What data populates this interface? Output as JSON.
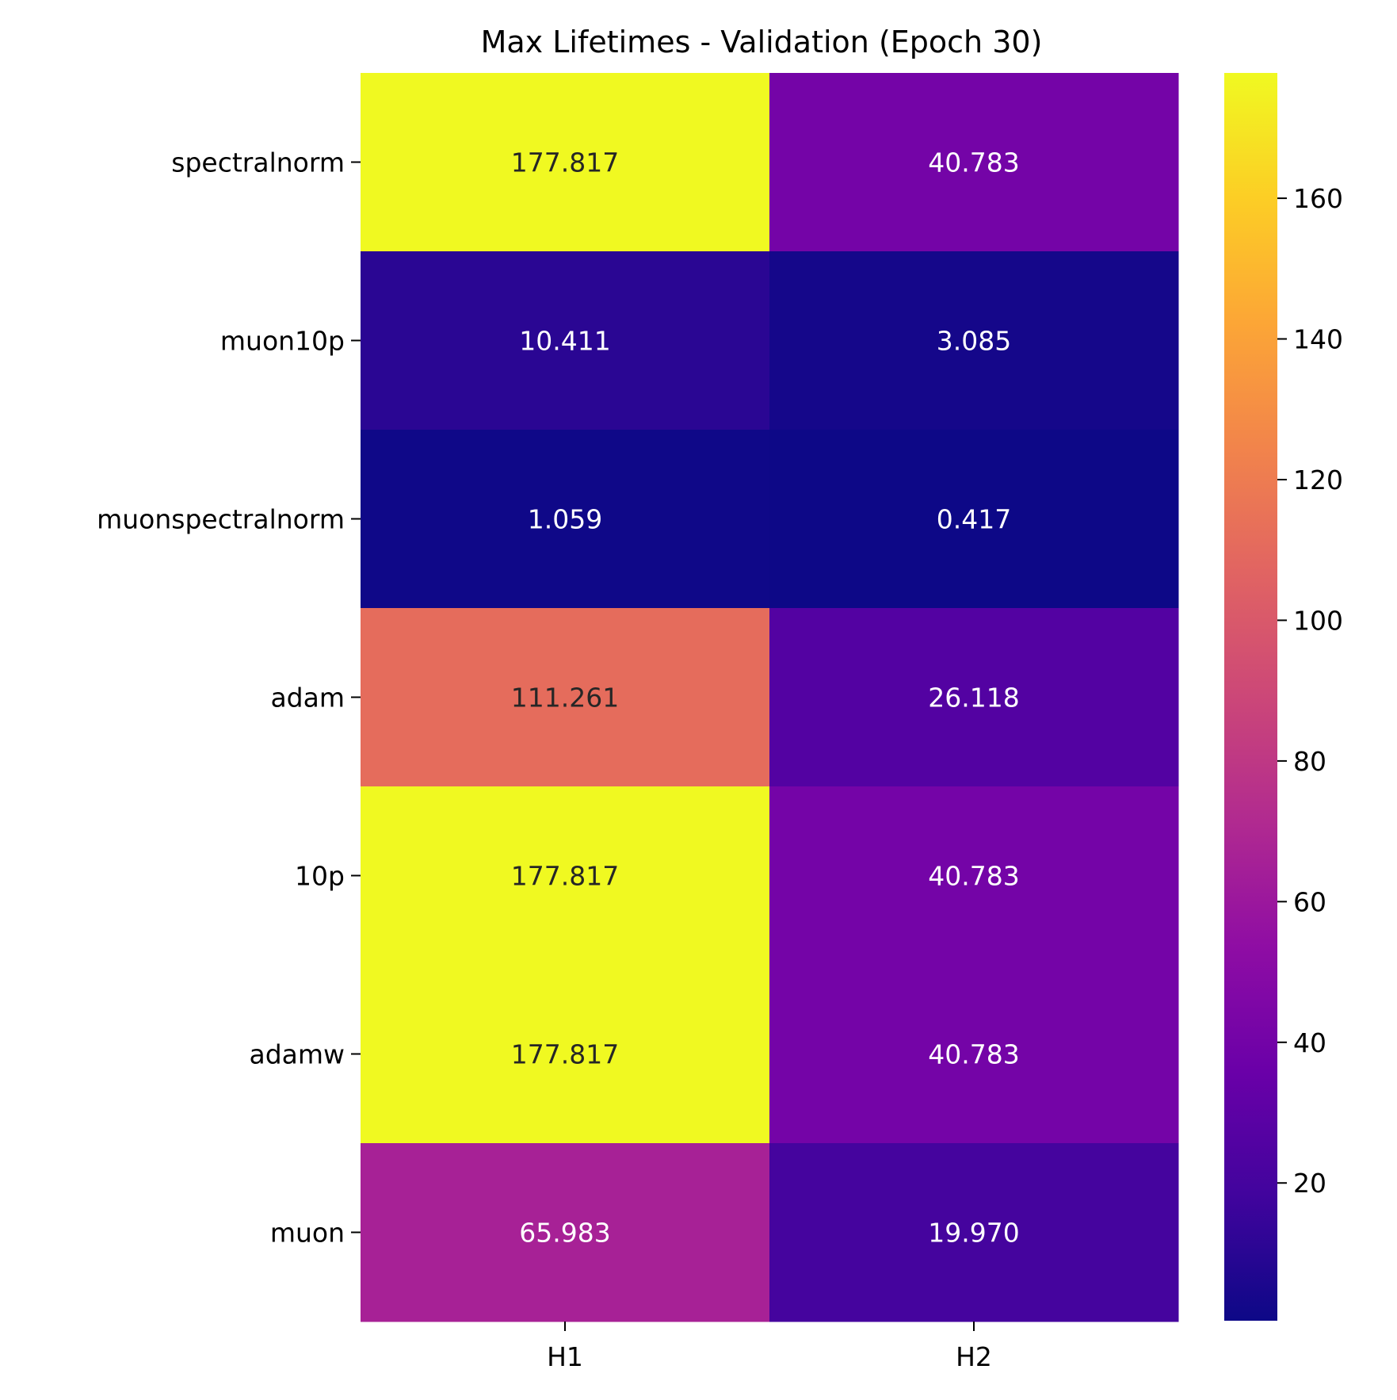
{
  "chart_data": {
    "type": "heatmap",
    "title": "Max Lifetimes - Validation (Epoch 30)",
    "xlabel": "",
    "ylabel": "",
    "columns": [
      "H1",
      "H2"
    ],
    "rows": [
      "spectralnorm",
      "muon10p",
      "muonspectralnorm",
      "adam",
      "10p",
      "adamw",
      "muon"
    ],
    "values": [
      [
        177.817,
        40.783
      ],
      [
        10.411,
        3.085
      ],
      [
        1.059,
        0.417
      ],
      [
        111.261,
        26.118
      ],
      [
        177.817,
        40.783
      ],
      [
        177.817,
        40.783
      ],
      [
        65.983,
        19.97
      ]
    ],
    "value_labels": [
      [
        "177.817",
        "40.783"
      ],
      [
        "10.411",
        "3.085"
      ],
      [
        "1.059",
        "0.417"
      ],
      [
        "111.261",
        "26.118"
      ],
      [
        "177.817",
        "40.783"
      ],
      [
        "177.817",
        "40.783"
      ],
      [
        "65.983",
        "19.970"
      ]
    ],
    "colormap": "plasma",
    "vmin": 0.417,
    "vmax": 177.817,
    "colorbar_ticks": [
      "20",
      "40",
      "60",
      "80",
      "100",
      "120",
      "140",
      "160"
    ],
    "colorbar_tick_values": [
      20,
      40,
      60,
      80,
      100,
      120,
      140,
      160
    ]
  }
}
